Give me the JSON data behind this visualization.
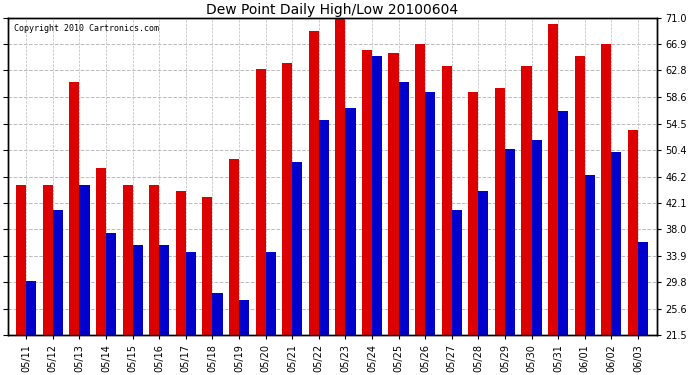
{
  "title": "Dew Point Daily High/Low 20100604",
  "copyright": "Copyright 2010 Cartronics.com",
  "dates": [
    "05/11",
    "05/12",
    "05/13",
    "05/14",
    "05/15",
    "05/16",
    "05/17",
    "05/18",
    "05/19",
    "05/20",
    "05/21",
    "05/22",
    "05/23",
    "05/24",
    "05/25",
    "05/26",
    "05/27",
    "05/28",
    "05/29",
    "05/30",
    "05/31",
    "06/01",
    "06/02",
    "06/03"
  ],
  "high": [
    45.0,
    45.0,
    61.0,
    47.5,
    45.0,
    45.0,
    44.0,
    43.0,
    49.0,
    63.0,
    64.0,
    69.0,
    72.0,
    66.0,
    65.5,
    67.0,
    63.5,
    59.5,
    60.0,
    63.5,
    70.0,
    65.0,
    67.0,
    53.5
  ],
  "low": [
    30.0,
    41.0,
    45.0,
    37.5,
    35.5,
    35.5,
    34.5,
    28.0,
    27.0,
    34.5,
    48.5,
    55.0,
    57.0,
    65.0,
    61.0,
    59.5,
    41.0,
    44.0,
    50.5,
    52.0,
    56.5,
    46.5,
    50.0,
    36.0
  ],
  "high_color": "#dd0000",
  "low_color": "#0000cc",
  "bg_color": "#ffffff",
  "grid_color": "#bbbbbb",
  "yticks": [
    21.5,
    25.6,
    29.8,
    33.9,
    38.0,
    42.1,
    46.2,
    50.4,
    54.5,
    58.6,
    62.8,
    66.9,
    71.0
  ],
  "ymin": 21.5,
  "ymax": 71.0,
  "bar_width": 0.38
}
